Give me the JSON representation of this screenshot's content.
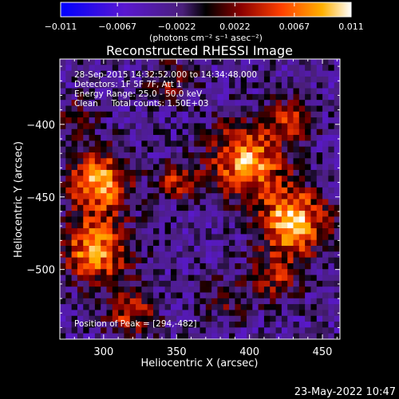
{
  "chart_data": {
    "type": "heatmap",
    "title": "Reconstructed RHESSI Image",
    "xlabel": "Heliocentric X (arcsec)",
    "ylabel": "Heliocentric Y (arcsec)",
    "xlim": [
      270,
      462
    ],
    "ylim": [
      -548,
      -355
    ],
    "x_ticks": [
      300,
      350,
      400,
      450
    ],
    "y_ticks": [
      -400,
      -450,
      -500
    ],
    "colorbar": {
      "min": -0.011,
      "max": 0.011,
      "ticks": [
        -0.011,
        -0.0067,
        -0.0022,
        0.0022,
        0.0067,
        0.011
      ],
      "tick_labels": [
        "−0.011",
        "−0.0067",
        "−0.0022",
        "0.0022",
        "0.0067",
        "0.011"
      ],
      "unit_label": "(photons cm⁻² s⁻¹ asec⁻²)"
    },
    "info_lines": [
      "28-Sep-2015 14:32:52.000 to 14:34:48.000",
      "Detectors: 1F 5F 7F, Att 1",
      "Energy Range: 25.0 - 50.0 keV",
      "Clean     Total counts: 1.50E+03"
    ],
    "peak_label": "Position of Peak = [294,-482]",
    "peak": [
      294,
      -482
    ],
    "sources": [
      {
        "x": 430,
        "y": -467,
        "amp": 1.0,
        "sigma": 16
      },
      {
        "x": 398,
        "y": -425,
        "amp": 0.9,
        "sigma": 18
      },
      {
        "x": 297,
        "y": -440,
        "amp": 0.9,
        "sigma": 15
      },
      {
        "x": 294,
        "y": -487,
        "amp": 0.85,
        "sigma": 16
      },
      {
        "x": 430,
        "y": -395,
        "amp": 0.55,
        "sigma": 10
      },
      {
        "x": 350,
        "y": -438,
        "amp": 0.55,
        "sigma": 9
      },
      {
        "x": 318,
        "y": -530,
        "amp": 0.55,
        "sigma": 12
      },
      {
        "x": 345,
        "y": -370,
        "amp": 0.4,
        "sigma": 11
      },
      {
        "x": 418,
        "y": -505,
        "amp": 0.45,
        "sigma": 12
      },
      {
        "x": 383,
        "y": -520,
        "amp": 0.3,
        "sigma": 12
      },
      {
        "x": 282,
        "y": -395,
        "amp": 0.3,
        "sigma": 10
      }
    ]
  },
  "footer": {
    "date": "23-May-2022 10:47"
  }
}
